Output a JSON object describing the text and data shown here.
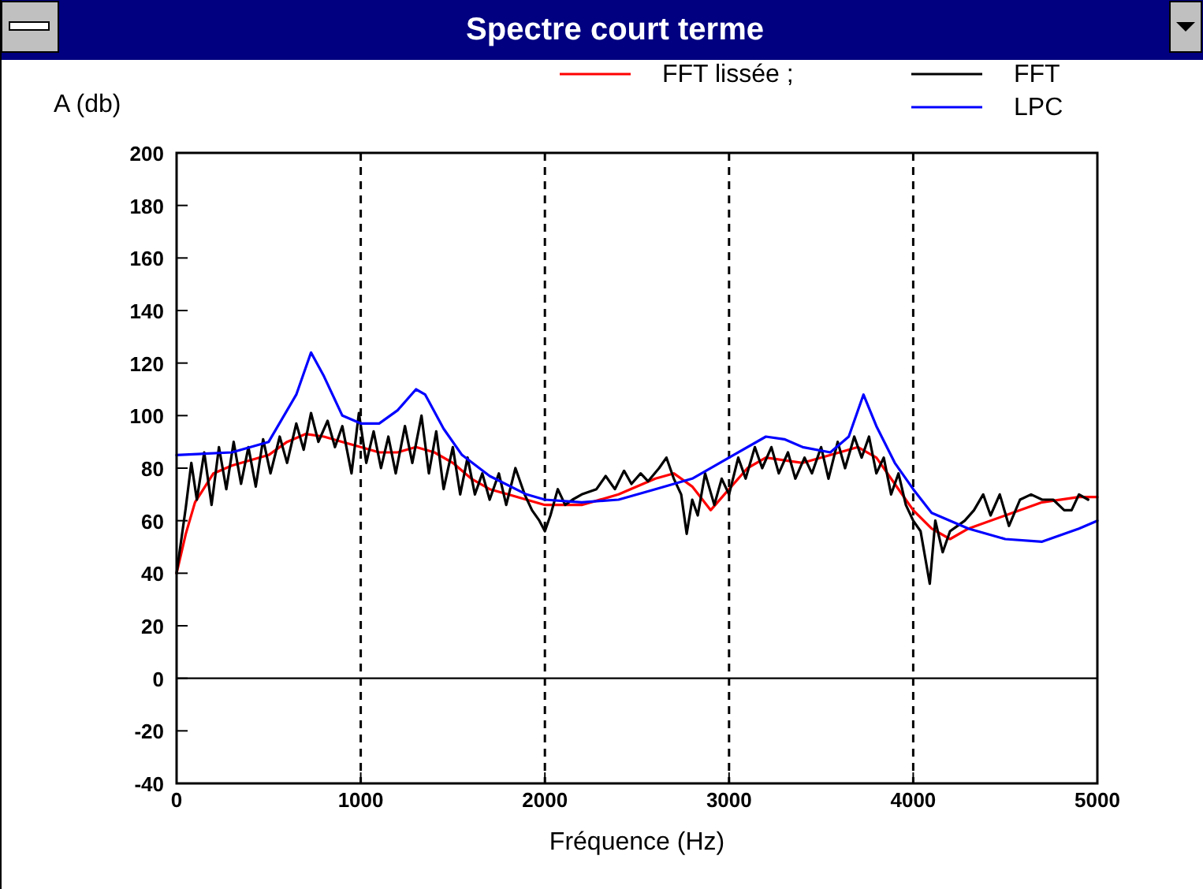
{
  "chart_data": {
    "type": "line",
    "title": "Spectre court terme",
    "xlabel": "Fréquence (Hz)",
    "ylabel": "A (db)",
    "xlim": [
      0,
      5000
    ],
    "xticks": [
      0,
      1000,
      2000,
      3000,
      4000,
      5000
    ],
    "ylim": [
      -40,
      200
    ],
    "yticks": [
      -40,
      -20,
      0,
      20,
      40,
      60,
      80,
      100,
      120,
      140,
      160,
      180,
      200
    ],
    "grid": "x",
    "legend": "top right",
    "line_style": "solid",
    "ref_lines": [
      {
        "axis": "y",
        "value": 0,
        "color": "#000000"
      }
    ],
    "series": [
      {
        "name": "FFT lissée ;",
        "color": "#ff0000",
        "x": [
          0,
          50,
          100,
          200,
          300,
          400,
          500,
          600,
          700,
          800,
          900,
          1000,
          1100,
          1200,
          1300,
          1400,
          1500,
          1600,
          1700,
          1800,
          2000,
          2200,
          2400,
          2600,
          2700,
          2800,
          2900,
          3000,
          3100,
          3200,
          3400,
          3600,
          3700,
          3800,
          3900,
          4000,
          4100,
          4200,
          4300,
          4500,
          4700,
          4900,
          5000
        ],
        "values": [
          40,
          55,
          67,
          78,
          81,
          83,
          85,
          90,
          93,
          92,
          90,
          88,
          86,
          86,
          88,
          86,
          82,
          76,
          72,
          70,
          66,
          66,
          70,
          76,
          78,
          73,
          64,
          72,
          80,
          84,
          82,
          86,
          88,
          84,
          74,
          64,
          57,
          53,
          57,
          62,
          67,
          69,
          69
        ]
      },
      {
        "name": "FFT",
        "color": "#000000",
        "x": [
          0,
          50,
          80,
          110,
          150,
          190,
          230,
          270,
          310,
          350,
          390,
          430,
          470,
          510,
          560,
          600,
          650,
          690,
          730,
          770,
          820,
          860,
          900,
          950,
          990,
          1030,
          1070,
          1110,
          1150,
          1190,
          1240,
          1280,
          1330,
          1370,
          1410,
          1450,
          1500,
          1540,
          1580,
          1620,
          1660,
          1700,
          1750,
          1790,
          1840,
          1890,
          1930,
          1970,
          2000,
          2030,
          2070,
          2110,
          2150,
          2200,
          2280,
          2330,
          2380,
          2430,
          2470,
          2520,
          2560,
          2620,
          2660,
          2700,
          2740,
          2770,
          2800,
          2830,
          2870,
          2920,
          2960,
          3000,
          3050,
          3090,
          3140,
          3180,
          3230,
          3270,
          3320,
          3360,
          3410,
          3450,
          3500,
          3540,
          3590,
          3630,
          3680,
          3720,
          3760,
          3800,
          3840,
          3880,
          3920,
          3960,
          4000,
          4040,
          4090,
          4120,
          4160,
          4200,
          4240,
          4280,
          4330,
          4380,
          4420,
          4470,
          4520,
          4580,
          4640,
          4700,
          4760,
          4820,
          4860,
          4900,
          4950
        ],
        "values": [
          40,
          65,
          82,
          68,
          86,
          66,
          88,
          72,
          90,
          74,
          88,
          73,
          91,
          78,
          92,
          82,
          97,
          87,
          101,
          90,
          98,
          88,
          96,
          78,
          101,
          82,
          94,
          80,
          92,
          78,
          96,
          82,
          100,
          78,
          94,
          72,
          88,
          70,
          84,
          70,
          78,
          68,
          78,
          66,
          80,
          70,
          64,
          60,
          56,
          62,
          72,
          66,
          68,
          70,
          72,
          77,
          72,
          79,
          74,
          78,
          75,
          80,
          84,
          76,
          70,
          55,
          68,
          62,
          78,
          66,
          76,
          70,
          84,
          76,
          88,
          80,
          88,
          78,
          86,
          76,
          84,
          78,
          88,
          76,
          90,
          80,
          92,
          84,
          92,
          78,
          84,
          70,
          78,
          66,
          60,
          56,
          36,
          60,
          48,
          56,
          58,
          60,
          64,
          70,
          62,
          70,
          58,
          68,
          70,
          68,
          68,
          64,
          64,
          70,
          68
        ]
      },
      {
        "name": "LPC",
        "color": "#0000ff",
        "x": [
          0,
          300,
          500,
          650,
          730,
          800,
          900,
          1000,
          1100,
          1200,
          1300,
          1350,
          1450,
          1550,
          1700,
          1900,
          2000,
          2200,
          2400,
          2600,
          2800,
          3000,
          3200,
          3300,
          3400,
          3550,
          3650,
          3730,
          3800,
          3900,
          4000,
          4100,
          4300,
          4500,
          4700,
          4900,
          5000
        ],
        "values": [
          85,
          86,
          90,
          108,
          124,
          115,
          100,
          97,
          97,
          102,
          110,
          108,
          95,
          85,
          77,
          70,
          68,
          67,
          68,
          72,
          76,
          84,
          92,
          91,
          88,
          86,
          92,
          108,
          96,
          82,
          72,
          63,
          57,
          53,
          52,
          57,
          60
        ]
      }
    ]
  }
}
